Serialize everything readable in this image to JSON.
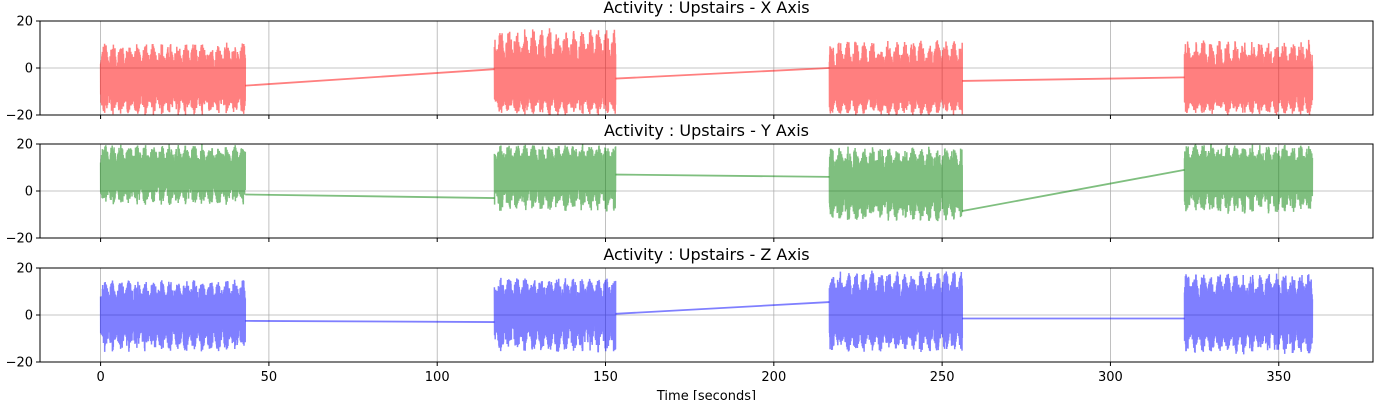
{
  "chart_data": [
    {
      "type": "line",
      "title": "Activity : Upstairs - X Axis",
      "color": "#ff0000",
      "ylim": [
        -20,
        20
      ],
      "yticks": [
        "20",
        "0",
        "−20"
      ],
      "xlim": [
        -18,
        378
      ],
      "grid": true,
      "segments": [
        {
          "x": [
            0,
            43
          ],
          "center": -6,
          "amplitude_low": -20,
          "amplitude_high": 11
        },
        {
          "x": [
            117,
            153
          ],
          "center": -7,
          "amplitude_low": -20,
          "amplitude_high": 17
        },
        {
          "x": [
            216.5,
            256
          ],
          "center": -8,
          "amplitude_low": -20,
          "amplitude_high": 12
        },
        {
          "x": [
            322,
            360
          ],
          "center": -7,
          "amplitude_low": -20,
          "amplitude_high": 12
        }
      ],
      "connectors": [
        {
          "x": [
            43,
            117
          ],
          "y": [
            -7.5,
            -0.5
          ]
        },
        {
          "x": [
            153,
            216.5
          ],
          "y": [
            -4.5,
            0
          ]
        },
        {
          "x": [
            256,
            322
          ],
          "y": [
            -5.5,
            -4
          ]
        }
      ]
    },
    {
      "type": "line",
      "title": "Activity : Upstairs - Y Axis",
      "color": "#008000",
      "ylim": [
        -20,
        20
      ],
      "yticks": [
        "20",
        "0",
        "−20"
      ],
      "xlim": [
        -18,
        378
      ],
      "grid": true,
      "segments": [
        {
          "x": [
            0,
            43
          ],
          "center": 7,
          "amplitude_low": -6,
          "amplitude_high": 20
        },
        {
          "x": [
            117,
            153
          ],
          "center": 8,
          "amplitude_low": -9,
          "amplitude_high": 20
        },
        {
          "x": [
            216.5,
            256
          ],
          "center": 3,
          "amplitude_low": -13,
          "amplitude_high": 19
        },
        {
          "x": [
            322,
            360
          ],
          "center": 7,
          "amplitude_low": -10,
          "amplitude_high": 20
        }
      ],
      "connectors": [
        {
          "x": [
            43,
            117
          ],
          "y": [
            -1.5,
            -3
          ]
        },
        {
          "x": [
            153,
            216.5
          ],
          "y": [
            7,
            6
          ]
        },
        {
          "x": [
            256,
            322
          ],
          "y": [
            -8.5,
            9
          ]
        }
      ]
    },
    {
      "type": "line",
      "title": "Activity : Upstairs - Z Axis",
      "color": "#0000ff",
      "ylim": [
        -20,
        20
      ],
      "yticks": [
        "20",
        "0",
        "−20"
      ],
      "xlim": [
        -18,
        378
      ],
      "grid": true,
      "segments": [
        {
          "x": [
            0,
            43
          ],
          "center": 1,
          "amplitude_low": -16,
          "amplitude_high": 15
        },
        {
          "x": [
            117,
            153
          ],
          "center": 2,
          "amplitude_low": -16,
          "amplitude_high": 16
        },
        {
          "x": [
            216.5,
            256
          ],
          "center": 1,
          "amplitude_low": -16,
          "amplitude_high": 19
        },
        {
          "x": [
            322,
            360
          ],
          "center": 1,
          "amplitude_low": -17,
          "amplitude_high": 18
        }
      ],
      "connectors": [
        {
          "x": [
            43,
            117
          ],
          "y": [
            -2.5,
            -3
          ]
        },
        {
          "x": [
            153,
            216.5
          ],
          "y": [
            0.5,
            5.5
          ]
        },
        {
          "x": [
            256,
            322
          ],
          "y": [
            -1.5,
            -1.5
          ]
        }
      ]
    }
  ],
  "shared_x": {
    "xlabel": "Time [seconds]",
    "ticks": [
      0,
      50,
      100,
      150,
      200,
      250,
      300,
      350
    ],
    "tick_labels": [
      "0",
      "50",
      "100",
      "150",
      "200",
      "250",
      "300",
      "350"
    ]
  }
}
